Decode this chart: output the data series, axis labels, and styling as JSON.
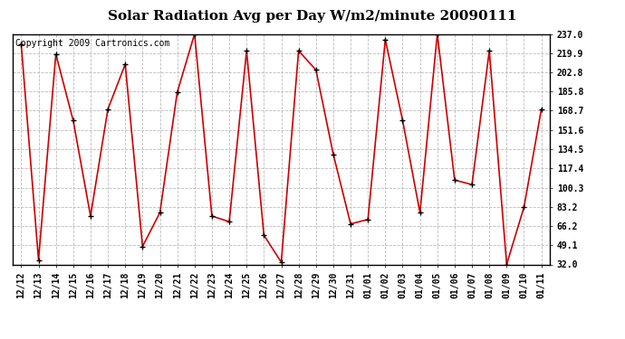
{
  "title": "Solar Radiation Avg per Day W/m2/minute 20090111",
  "copyright": "Copyright 2009 Cartronics.com",
  "x_labels": [
    "12/12",
    "12/13",
    "12/14",
    "12/15",
    "12/16",
    "12/17",
    "12/18",
    "12/19",
    "12/20",
    "12/21",
    "12/22",
    "12/23",
    "12/24",
    "12/25",
    "12/26",
    "12/27",
    "12/28",
    "12/29",
    "12/30",
    "12/31",
    "01/01",
    "01/02",
    "01/03",
    "01/04",
    "01/05",
    "01/06",
    "01/07",
    "01/08",
    "01/09",
    "01/10",
    "01/11"
  ],
  "y_values": [
    228,
    36,
    219,
    160,
    75,
    170,
    210,
    48,
    78,
    185,
    237,
    75,
    70,
    222,
    58,
    34,
    222,
    205,
    130,
    68,
    72,
    232,
    160,
    78,
    237,
    107,
    103,
    222,
    32,
    83,
    170
  ],
  "y_ticks": [
    32.0,
    49.1,
    66.2,
    83.2,
    100.3,
    117.4,
    134.5,
    151.6,
    168.7,
    185.8,
    202.8,
    219.9,
    237.0
  ],
  "line_color": "#cc0000",
  "bg_color": "#ffffff",
  "grid_color": "#bbbbbb",
  "title_fontsize": 11,
  "label_fontsize": 7,
  "copyright_fontsize": 7
}
